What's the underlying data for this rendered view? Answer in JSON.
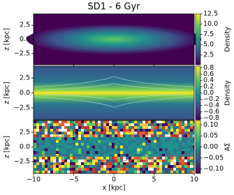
{
  "chart_data": [
    {
      "type": "heatmap",
      "title": "SD1 - 6 Gyr",
      "ylabel": "z [kpc]",
      "xlim": [
        -10,
        10
      ],
      "xticks": [
        -10,
        -5,
        0,
        5,
        10
      ],
      "ylim": [
        -4.5,
        4.5
      ],
      "yticks": [
        2.5,
        {
          "value": 0,
          "label": "0.0"
        },
        {
          "value": -2.5,
          "label": "−2.5"
        }
      ],
      "colorbar": {
        "label": "Density",
        "lim": [
          0.1,
          12.5
        ],
        "ticks": [
          12.5,
          {
            "value": 10,
            "label": "10.0"
          },
          7.5,
          {
            "value": 5,
            "label": "5.0"
          },
          2.5
        ]
      }
    },
    {
      "type": "heatmap",
      "ylabel": "z [kpc]",
      "xlim": [
        -10,
        10
      ],
      "xticks": [
        -10,
        -5,
        0,
        5,
        10
      ],
      "ylim": [
        -4.5,
        4.5
      ],
      "yticks": [
        2.5,
        {
          "value": 0,
          "label": "0.0"
        },
        {
          "value": -2.5,
          "label": "−2.5"
        }
      ],
      "colorbar": {
        "label": "Density",
        "lim": [
          -0.85,
          0.85
        ],
        "ticks": [
          0.8,
          0.6,
          0.4,
          0.2,
          {
            "value": 0,
            "label": "0.0"
          },
          {
            "value": -0.2,
            "label": "−0.2"
          },
          {
            "value": -0.4,
            "label": "−0.4"
          },
          {
            "value": -0.6,
            "label": "−0.6"
          },
          {
            "value": -0.8,
            "label": "−0.8"
          }
        ]
      }
    },
    {
      "type": "heatmap",
      "ylabel": "z [kpc]",
      "xlabel": "x [kpc]",
      "xlim": [
        -10,
        10
      ],
      "xticks": [
        {
          "value": -10,
          "label": "−10"
        },
        {
          "value": -5,
          "label": "−5"
        },
        0,
        5,
        10
      ],
      "ylim": [
        -4.5,
        4.5
      ],
      "yticks": [
        2.5,
        {
          "value": 0,
          "label": "0.0"
        },
        {
          "value": -2.5,
          "label": "−2.5"
        }
      ],
      "colorbar": {
        "label": "AΣ",
        "lim": [
          -0.12,
          0.12
        ],
        "ticks": [
          {
            "value": 0.1,
            "label": "0.10"
          },
          {
            "value": 0.05,
            "label": "0.05"
          },
          {
            "value": 0,
            "label": "0.00"
          },
          {
            "value": -0.05,
            "label": "−0.05"
          },
          {
            "value": -0.1,
            "label": "−0.10"
          }
        ]
      }
    }
  ]
}
